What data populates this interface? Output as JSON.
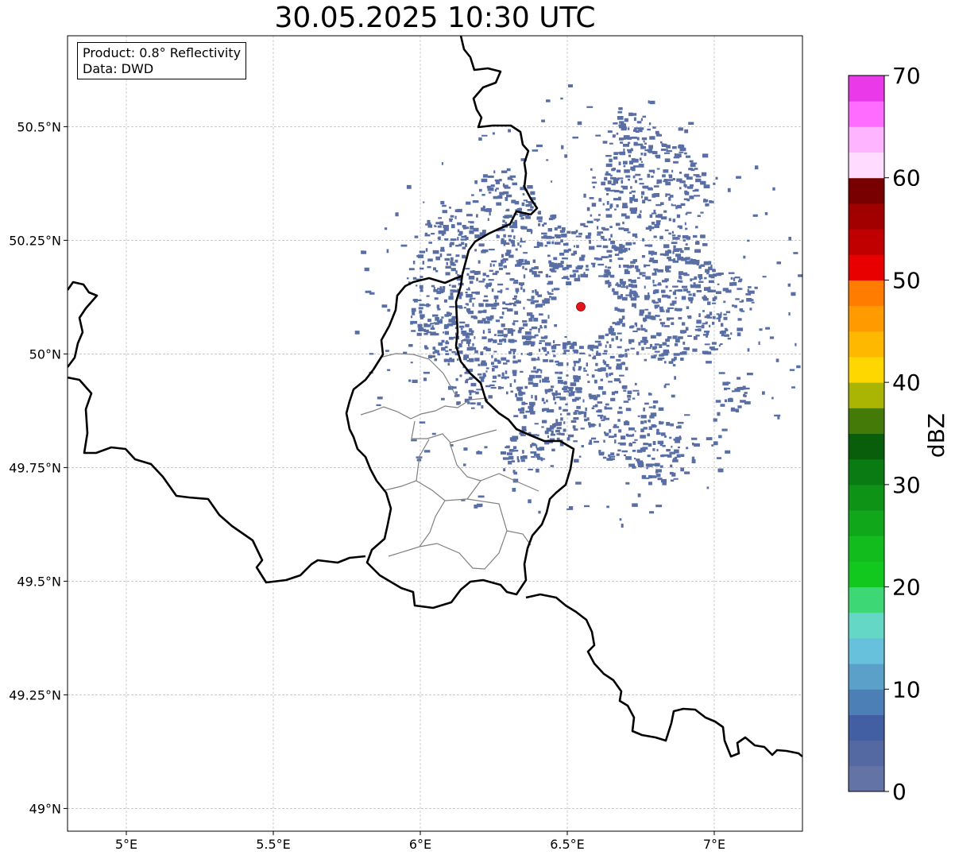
{
  "title": "30.05.2025 10:30 UTC",
  "info_box": {
    "product": "Product: 0.8° Reflectivity",
    "data": "Data: DWD"
  },
  "map": {
    "lon_range": [
      4.8,
      7.3
    ],
    "lat_range": [
      48.95,
      50.7
    ],
    "lon_ticks": [
      5.0,
      5.5,
      6.0,
      6.5,
      7.0
    ],
    "lat_ticks": [
      49.0,
      49.25,
      49.5,
      49.75,
      50.0,
      50.25,
      50.5
    ],
    "lon_tick_labels": [
      "5°E",
      "5.5°E",
      "6°E",
      "6.5°E",
      "7°E"
    ],
    "lat_tick_labels": [
      "49°N",
      "49.25°N",
      "49.5°N",
      "49.75°N",
      "50°N",
      "50.25°N",
      "50.5°N"
    ],
    "grid": true,
    "radar_site": {
      "lon": 6.548,
      "lat": 50.111,
      "color": "#e8141c"
    },
    "echo_color": "#4f66a0",
    "echo_region": {
      "center_lon": 6.55,
      "center_lat": 50.1,
      "extent": "approx. 0.55° radius around site, mostly 0–10 dBZ"
    }
  },
  "colorbar": {
    "label": "dBZ",
    "min": 0,
    "max": 70,
    "step": 2.5,
    "tick_values": [
      0,
      10,
      20,
      30,
      40,
      50,
      60,
      70
    ],
    "tick_labels": [
      "0",
      "10",
      "20",
      "30",
      "40",
      "50",
      "60",
      "70"
    ],
    "colors": [
      "#6473a6",
      "#5469a1",
      "#435fa3",
      "#4c7fb6",
      "#5ba0c8",
      "#67c1dc",
      "#64d7c7",
      "#3ed775",
      "#12c71e",
      "#11bc1c",
      "#10a71a",
      "#0f9316",
      "#0a7a12",
      "#095e0c",
      "#447a08",
      "#a9b403",
      "#ffd700",
      "#ffb800",
      "#ff9b00",
      "#ff7c00",
      "#e80000",
      "#c00000",
      "#a00000",
      "#780000",
      "#ffdcff",
      "#ffb4ff",
      "#ff6cff",
      "#e939e9"
    ]
  }
}
